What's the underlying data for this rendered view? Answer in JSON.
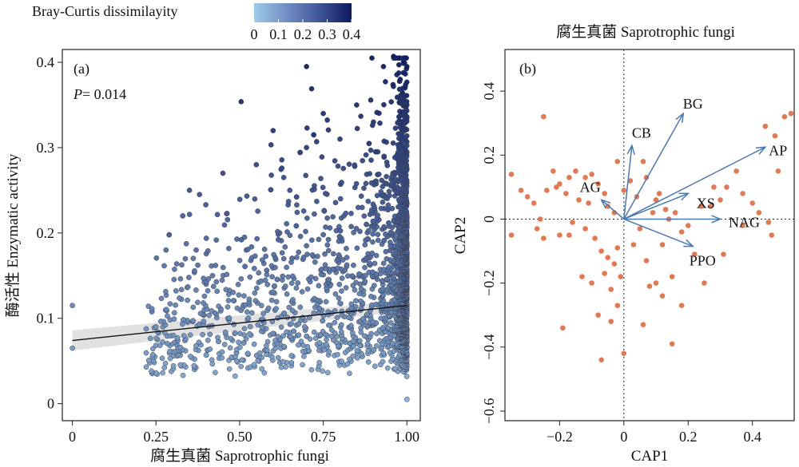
{
  "chart_data": [
    {
      "panel": "(a)",
      "type": "scatter",
      "title": "",
      "xlabel": "腐生真菌 Saprotrophic fungi",
      "ylabel": "酶活性 Enzymatic activity",
      "annotation": {
        "italic": "P",
        "text": "= 0.014"
      },
      "xlim": [
        -0.03,
        1.04
      ],
      "ylim": [
        -0.02,
        0.415
      ],
      "xticks": [
        0,
        0.25,
        0.5,
        0.75,
        1.0
      ],
      "xtick_labels": [
        "0",
        "0.25",
        "0.50",
        "0.75",
        "1.00"
      ],
      "yticks": [
        0,
        0.1,
        0.2,
        0.3,
        0.4
      ],
      "ytick_labels": [
        "0",
        "0.1",
        "0.2",
        "0.3",
        "0.4"
      ],
      "colorbar": {
        "title": "Bray-Curtis dissimilayity",
        "ticks": [
          0,
          0.1,
          0.2,
          0.3,
          0.4
        ],
        "tick_labels": [
          "0",
          "0.1",
          "0.2",
          "0.3",
          "0.4"
        ],
        "color_low": "#9ecae8",
        "color_high": "#0d1a5e"
      },
      "fit": {
        "x": [
          0,
          1.0
        ],
        "y": [
          0.074,
          0.115
        ],
        "ci_halfwidth": [
          0.012,
          0.006
        ]
      },
      "points_note": "approx. 3000 points; dense cloud near x = 1.00",
      "sample_points": [
        [
          0.0,
          0.115
        ],
        [
          0.0,
          0.065
        ],
        [
          0.25,
          0.09
        ],
        [
          0.25,
          0.036
        ],
        [
          0.27,
          0.036
        ],
        [
          0.28,
          0.18
        ],
        [
          0.3,
          0.07
        ],
        [
          0.33,
          0.22
        ],
        [
          0.35,
          0.25
        ],
        [
          0.37,
          0.18
        ],
        [
          0.38,
          0.245
        ],
        [
          0.4,
          0.14
        ],
        [
          0.45,
          0.27
        ],
        [
          0.52,
          0.18
        ],
        [
          0.55,
          0.28
        ],
        [
          0.6,
          0.32
        ],
        [
          0.62,
          0.2
        ],
        [
          0.65,
          0.25
        ],
        [
          0.7,
          0.395
        ],
        [
          0.7,
          0.3
        ],
        [
          0.75,
          0.34
        ],
        [
          0.8,
          0.31
        ],
        [
          0.85,
          0.35
        ],
        [
          0.9,
          0.33
        ],
        [
          0.93,
          0.395
        ],
        [
          0.96,
          0.407
        ],
        [
          0.98,
          0.38
        ],
        [
          1.0,
          0.395
        ],
        [
          1.0,
          0.35
        ],
        [
          1.0,
          0.005
        ]
      ]
    },
    {
      "panel": "(b)",
      "type": "scatter",
      "title": "腐生真菌 Saprotrophic fungi",
      "xlabel": "CAP1",
      "ylabel": "CAP2",
      "xlim": [
        -0.37,
        0.53
      ],
      "ylim": [
        -0.63,
        0.53
      ],
      "xticks": [
        -0.2,
        0,
        0.2,
        0.4
      ],
      "xtick_labels": [
        "−0.2",
        "0",
        "0.2",
        "0.4"
      ],
      "yticks": [
        -0.6,
        -0.4,
        -0.2,
        0,
        0.2,
        0.4
      ],
      "ytick_labels": [
        "−0.6",
        "−0.4",
        "−0.2",
        "0",
        "0.2",
        "0.4"
      ],
      "reference_lines": {
        "x": 0,
        "y": 0
      },
      "vectors": [
        {
          "label": "BG",
          "x": 0.185,
          "y": 0.33
        },
        {
          "label": "AP",
          "x": 0.44,
          "y": 0.225
        },
        {
          "label": "CB",
          "x": 0.025,
          "y": 0.23
        },
        {
          "label": "AG",
          "x": -0.07,
          "y": 0.06
        },
        {
          "label": "XS",
          "x": 0.2,
          "y": 0.08
        },
        {
          "label": "NAG",
          "x": 0.3,
          "y": 0.0
        },
        {
          "label": "PPO",
          "x": 0.215,
          "y": -0.085
        }
      ],
      "vector_color": "#4a78b0",
      "point_color": "#e07a55",
      "points": [
        [
          -0.25,
          0.32
        ],
        [
          -0.3,
          0.07
        ],
        [
          -0.35,
          0.14
        ],
        [
          -0.32,
          0.09
        ],
        [
          -0.35,
          -0.05
        ],
        [
          -0.27,
          -0.03
        ],
        [
          -0.28,
          0.05
        ],
        [
          -0.24,
          0.09
        ],
        [
          -0.22,
          0.15
        ],
        [
          -0.2,
          0.11
        ],
        [
          -0.18,
          0.08
        ],
        [
          -0.17,
          0.13
        ],
        [
          -0.15,
          0.15
        ],
        [
          -0.14,
          0.06
        ],
        [
          -0.12,
          0.13
        ],
        [
          -0.1,
          0.14
        ],
        [
          -0.08,
          0.11
        ],
        [
          -0.06,
          0.08
        ],
        [
          -0.05,
          0.04
        ],
        [
          -0.03,
          0.02
        ],
        [
          -0.02,
          0.18
        ],
        [
          -0.16,
          -0.01
        ],
        [
          -0.2,
          -0.05
        ],
        [
          -0.25,
          -0.06
        ],
        [
          -0.17,
          -0.05
        ],
        [
          -0.12,
          -0.03
        ],
        [
          -0.09,
          -0.06
        ],
        [
          -0.07,
          -0.1
        ],
        [
          -0.05,
          -0.12
        ],
        [
          -0.03,
          -0.14
        ],
        [
          -0.02,
          -0.09
        ],
        [
          -0.06,
          -0.17
        ],
        [
          -0.04,
          -0.22
        ],
        [
          -0.02,
          -0.27
        ],
        [
          -0.08,
          -0.3
        ],
        [
          -0.04,
          -0.32
        ],
        [
          -0.1,
          -0.2
        ],
        [
          -0.13,
          -0.18
        ],
        [
          -0.19,
          -0.34
        ],
        [
          0.03,
          -0.08
        ],
        [
          0.05,
          -0.03
        ],
        [
          0.07,
          -0.13
        ],
        [
          0.08,
          -0.21
        ],
        [
          0.1,
          -0.2
        ],
        [
          0.12,
          -0.24
        ],
        [
          0.15,
          -0.18
        ],
        [
          0.18,
          -0.27
        ],
        [
          0.22,
          -0.11
        ],
        [
          0.25,
          -0.2
        ],
        [
          0.12,
          -0.08
        ],
        [
          0.18,
          -0.04
        ],
        [
          0.2,
          -0.02
        ],
        [
          0.16,
          0.02
        ],
        [
          0.13,
          0.03
        ],
        [
          0.1,
          0.06
        ],
        [
          0.24,
          0.04
        ],
        [
          0.27,
          0.04
        ],
        [
          0.28,
          0.1
        ],
        [
          0.3,
          0.06
        ],
        [
          0.32,
          0.1
        ],
        [
          0.35,
          0.15
        ],
        [
          0.37,
          0.08
        ],
        [
          0.4,
          0.05
        ],
        [
          0.42,
          0.02
        ],
        [
          0.45,
          -0.01
        ],
        [
          0.46,
          -0.05
        ],
        [
          0.44,
          0.29
        ],
        [
          0.47,
          0.26
        ],
        [
          0.48,
          0.15
        ],
        [
          0.5,
          0.32
        ],
        [
          0.52,
          0.33
        ],
        [
          0.37,
          -0.02
        ],
        [
          0.31,
          -0.11
        ],
        [
          0.06,
          0.18
        ],
        [
          0.07,
          0.13
        ],
        [
          0.04,
          0.07
        ],
        [
          0.09,
          0.02
        ],
        [
          0.11,
          0.08
        ],
        [
          0.15,
          -0.39
        ],
        [
          0.0,
          -0.42
        ],
        [
          -0.07,
          -0.44
        ],
        [
          0.06,
          -0.33
        ],
        [
          -0.01,
          -0.18
        ],
        [
          0.0,
          0.09
        ],
        [
          -0.11,
          0.05
        ],
        [
          -0.21,
          0.1
        ],
        [
          -0.26,
          0.0
        ],
        [
          0.02,
          0.12
        ],
        [
          0.14,
          0.0
        ]
      ]
    }
  ]
}
